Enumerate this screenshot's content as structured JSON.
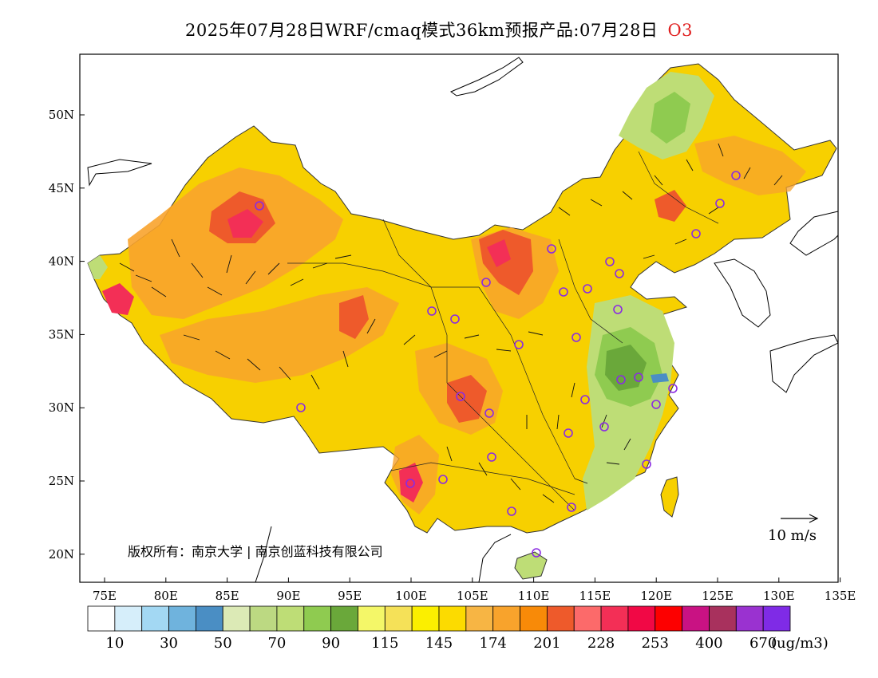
{
  "title": {
    "main": "2025年07月28日WRF/cmaq模式36km预报产品:07月28日",
    "species": "O3"
  },
  "map": {
    "lon_ticks": [
      "75E",
      "80E",
      "85E",
      "90E",
      "95E",
      "100E",
      "105E",
      "110E",
      "115E",
      "120E",
      "125E",
      "130E",
      "135E"
    ],
    "lat_ticks": [
      "50N",
      "45N",
      "40N",
      "35N",
      "30N",
      "25N",
      "20N"
    ],
    "copyright": "版权所有：南京大学 | 南京创蓝科技有限公司",
    "wind_scale_label": "10 m/s"
  },
  "colorbar": {
    "colors": [
      "#ffffff",
      "#d6eefa",
      "#a3d8f3",
      "#6fb3dd",
      "#4a8ec4",
      "#dceab6",
      "#bcd982",
      "#bedd76",
      "#8fcb50",
      "#6aa83a",
      "#f4f768",
      "#f5e158",
      "#fbef00",
      "#fcdb00",
      "#f7b544",
      "#f8a32c",
      "#f88a08",
      "#ee5a2b",
      "#fc6a6a",
      "#f32f56",
      "#f10845",
      "#fd0000",
      "#c91283",
      "#a8315d",
      "#9a32d0",
      "#7f2be6"
    ],
    "tick_labels": [
      "10",
      "30",
      "50",
      "70",
      "90",
      "115",
      "145",
      "174",
      "201",
      "228",
      "253",
      "400",
      "670"
    ],
    "unit": "(ug/m3)"
  }
}
